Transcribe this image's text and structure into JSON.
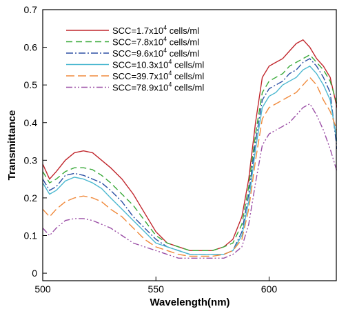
{
  "chart_data": {
    "type": "line",
    "xlabel": "Wavelength(nm)",
    "ylabel": "Transmittance",
    "xlim": [
      500,
      630
    ],
    "ylim": [
      -0.02,
      0.7
    ],
    "xticks": [
      500,
      550,
      600
    ],
    "yticks": [
      0,
      0.1,
      0.2,
      0.3,
      0.4,
      0.5,
      0.6,
      0.7
    ],
    "xtick_labels": [
      "500",
      "550",
      "600"
    ],
    "ytick_labels": [
      "0",
      "0.1",
      "0.2",
      "0.3",
      "0.4",
      "0.5",
      "0.6",
      "0.7"
    ],
    "grid": false,
    "legend_position": "top-left",
    "series": [
      {
        "name": "SCC=1.7x10^4 cells/ml",
        "legend": {
          "prefix": "SCC=1.7x10",
          "exp": "4",
          "suffix": " cells/ml"
        },
        "color": "#c1272d",
        "dash": "",
        "x": [
          500,
          503,
          506,
          510,
          514,
          518,
          522,
          526,
          530,
          535,
          540,
          545,
          550,
          555,
          560,
          565,
          570,
          575,
          580,
          584,
          588,
          591,
          594,
          597,
          600,
          603,
          606,
          609,
          612,
          615,
          618,
          621,
          624,
          627,
          630
        ],
        "y": [
          0.29,
          0.25,
          0.27,
          0.3,
          0.32,
          0.325,
          0.32,
          0.3,
          0.28,
          0.25,
          0.21,
          0.16,
          0.11,
          0.08,
          0.07,
          0.06,
          0.06,
          0.06,
          0.07,
          0.09,
          0.15,
          0.25,
          0.4,
          0.52,
          0.55,
          0.56,
          0.57,
          0.59,
          0.61,
          0.62,
          0.6,
          0.57,
          0.55,
          0.52,
          0.44
        ]
      },
      {
        "name": "SCC=7.8x10^4 cells/ml",
        "legend": {
          "prefix": "SCC=7.8x10",
          "exp": "4",
          "suffix": " cells/ml"
        },
        "color": "#39a939",
        "dash": "9,5",
        "x": [
          500,
          503,
          506,
          510,
          514,
          518,
          522,
          526,
          530,
          535,
          540,
          545,
          550,
          555,
          560,
          565,
          570,
          575,
          580,
          584,
          588,
          591,
          594,
          597,
          600,
          603,
          606,
          609,
          612,
          615,
          618,
          621,
          624,
          627,
          630
        ],
        "y": [
          0.27,
          0.24,
          0.25,
          0.27,
          0.28,
          0.28,
          0.275,
          0.26,
          0.24,
          0.21,
          0.18,
          0.14,
          0.1,
          0.08,
          0.07,
          0.06,
          0.06,
          0.06,
          0.07,
          0.08,
          0.13,
          0.23,
          0.37,
          0.48,
          0.51,
          0.52,
          0.53,
          0.55,
          0.56,
          0.57,
          0.58,
          0.56,
          0.54,
          0.51,
          0.45
        ]
      },
      {
        "name": "SCC=9.6x10^4 cells/ml",
        "legend": {
          "prefix": "SCC=9.6x10",
          "exp": "4",
          "suffix": " cells/ml"
        },
        "color": "#2b4fa3",
        "dash": "10,3,2,3",
        "x": [
          500,
          503,
          506,
          510,
          514,
          518,
          522,
          526,
          530,
          535,
          540,
          545,
          550,
          555,
          560,
          565,
          570,
          575,
          580,
          584,
          588,
          591,
          594,
          597,
          600,
          603,
          606,
          609,
          612,
          615,
          618,
          621,
          624,
          627,
          630
        ],
        "y": [
          0.25,
          0.22,
          0.23,
          0.26,
          0.265,
          0.26,
          0.25,
          0.24,
          0.22,
          0.19,
          0.15,
          0.12,
          0.09,
          0.07,
          0.06,
          0.05,
          0.05,
          0.05,
          0.05,
          0.06,
          0.11,
          0.21,
          0.35,
          0.46,
          0.49,
          0.5,
          0.51,
          0.53,
          0.54,
          0.56,
          0.57,
          0.55,
          0.52,
          0.48,
          0.33
        ]
      },
      {
        "name": "SCC=10.3x10^4 cells/ml",
        "legend": {
          "prefix": "SCC=10.3x10",
          "exp": "4",
          "suffix": " cells/ml"
        },
        "color": "#4cb8d0",
        "dash": "",
        "x": [
          500,
          503,
          506,
          510,
          514,
          518,
          522,
          526,
          530,
          535,
          540,
          545,
          550,
          555,
          560,
          565,
          570,
          575,
          580,
          584,
          588,
          591,
          594,
          597,
          600,
          603,
          606,
          609,
          612,
          615,
          618,
          621,
          624,
          627,
          630
        ],
        "y": [
          0.24,
          0.21,
          0.22,
          0.245,
          0.255,
          0.25,
          0.24,
          0.225,
          0.2,
          0.17,
          0.14,
          0.11,
          0.08,
          0.07,
          0.06,
          0.05,
          0.05,
          0.05,
          0.05,
          0.06,
          0.1,
          0.19,
          0.33,
          0.44,
          0.47,
          0.48,
          0.5,
          0.51,
          0.52,
          0.54,
          0.55,
          0.53,
          0.5,
          0.46,
          0.35
        ]
      },
      {
        "name": "SCC=39.7x10^4 cells/ml",
        "legend": {
          "prefix": "SCC=39.7x10",
          "exp": "4",
          "suffix": " cells/ml"
        },
        "color": "#f08a3c",
        "dash": "12,5",
        "x": [
          500,
          503,
          506,
          510,
          514,
          518,
          522,
          526,
          530,
          535,
          540,
          545,
          550,
          555,
          560,
          565,
          570,
          575,
          580,
          584,
          588,
          591,
          594,
          597,
          600,
          603,
          606,
          609,
          612,
          615,
          618,
          621,
          624,
          627,
          630
        ],
        "y": [
          0.17,
          0.15,
          0.17,
          0.19,
          0.2,
          0.205,
          0.2,
          0.19,
          0.17,
          0.15,
          0.12,
          0.09,
          0.07,
          0.06,
          0.05,
          0.045,
          0.045,
          0.045,
          0.05,
          0.06,
          0.09,
          0.17,
          0.3,
          0.41,
          0.44,
          0.45,
          0.46,
          0.47,
          0.48,
          0.5,
          0.52,
          0.5,
          0.46,
          0.43,
          0.38
        ]
      },
      {
        "name": "SCC=78.9x10^4 cells/ml",
        "legend": {
          "prefix": "SCC=78.9x10",
          "exp": "4",
          "suffix": " cells/ml"
        },
        "color": "#9b4fa6",
        "dash": "9,3,2,3,2,3",
        "x": [
          500,
          503,
          506,
          510,
          514,
          518,
          522,
          526,
          530,
          535,
          540,
          545,
          550,
          555,
          560,
          565,
          570,
          575,
          580,
          584,
          588,
          591,
          594,
          597,
          600,
          603,
          606,
          609,
          612,
          615,
          618,
          621,
          624,
          627,
          630
        ],
        "y": [
          0.12,
          0.1,
          0.12,
          0.14,
          0.145,
          0.145,
          0.14,
          0.13,
          0.12,
          0.1,
          0.08,
          0.07,
          0.06,
          0.05,
          0.04,
          0.04,
          0.04,
          0.04,
          0.04,
          0.05,
          0.07,
          0.13,
          0.24,
          0.34,
          0.37,
          0.38,
          0.39,
          0.4,
          0.42,
          0.44,
          0.45,
          0.42,
          0.38,
          0.33,
          0.27
        ]
      }
    ]
  }
}
